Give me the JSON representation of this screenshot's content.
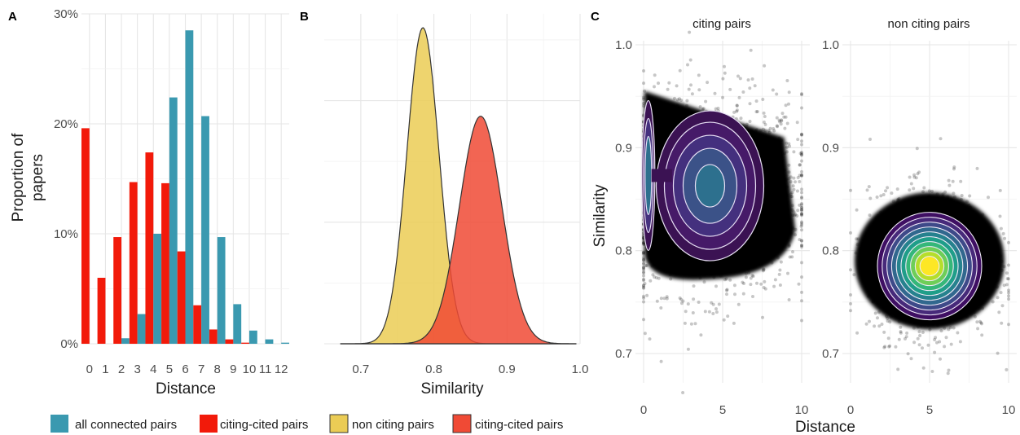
{
  "panels": {
    "a": {
      "label": "A"
    },
    "b": {
      "label": "B"
    },
    "c": {
      "label": "C",
      "strip_left": "citing pairs",
      "strip_right": "non citing pairs"
    }
  },
  "legend": {
    "items": [
      {
        "label": "all connected pairs",
        "color": "#3a99b0"
      },
      {
        "label": "citing-cited pairs",
        "color": "#f21a0a"
      },
      {
        "label": "non citing pairs",
        "color": "#ebcc55"
      },
      {
        "label": "citing-cited pairs",
        "color": "#f04a35"
      }
    ]
  },
  "chart_data": [
    {
      "panel": "A",
      "type": "bar",
      "xlabel": "Distance",
      "ylabel": "Proportion of papers",
      "ylabel_lines": [
        "Proportion of",
        "papers"
      ],
      "ylim": [
        0,
        30
      ],
      "yticks": [
        "0%",
        "10%",
        "20%",
        "30%"
      ],
      "categories": [
        "0",
        "1",
        "2",
        "3",
        "4",
        "5",
        "6",
        "7",
        "8",
        "9",
        "10",
        "11",
        "12"
      ],
      "series": [
        {
          "name": "citing-cited pairs",
          "color": "#f21a0a",
          "values": [
            19.6,
            6.0,
            9.7,
            14.7,
            17.4,
            14.6,
            8.4,
            3.5,
            1.3,
            0.4,
            0.1,
            0,
            0
          ]
        },
        {
          "name": "all connected pairs",
          "color": "#3a99b0",
          "values": [
            0,
            0,
            0.5,
            2.7,
            10.0,
            22.4,
            28.5,
            20.7,
            9.7,
            3.6,
            1.2,
            0.4,
            0.1
          ]
        }
      ]
    },
    {
      "panel": "B",
      "type": "area",
      "xlabel": "Similarity",
      "xlim": [
        0.65,
        1.0
      ],
      "xticks": [
        "0.7",
        "0.8",
        "0.9",
        "1.0"
      ],
      "series": [
        {
          "name": "non citing pairs",
          "color": "#ebcc55",
          "mean": 0.785,
          "sd": 0.022,
          "peak": 1.0
        },
        {
          "name": "citing-cited pairs",
          "color": "#f04a35",
          "mean": 0.864,
          "sd": 0.029,
          "peak": 0.72
        }
      ]
    },
    {
      "panel": "C",
      "type": "scatter",
      "xlabel": "Distance",
      "ylabel": "Similarity",
      "xlim": [
        0,
        10
      ],
      "ylim": [
        0.7,
        1.0
      ],
      "xticks": [
        "0",
        "5",
        "10"
      ],
      "yticks": [
        "0.7",
        "0.8",
        "0.9",
        "1.0"
      ],
      "facets": [
        {
          "name": "citing pairs"
        },
        {
          "name": "non citing pairs"
        }
      ]
    }
  ]
}
